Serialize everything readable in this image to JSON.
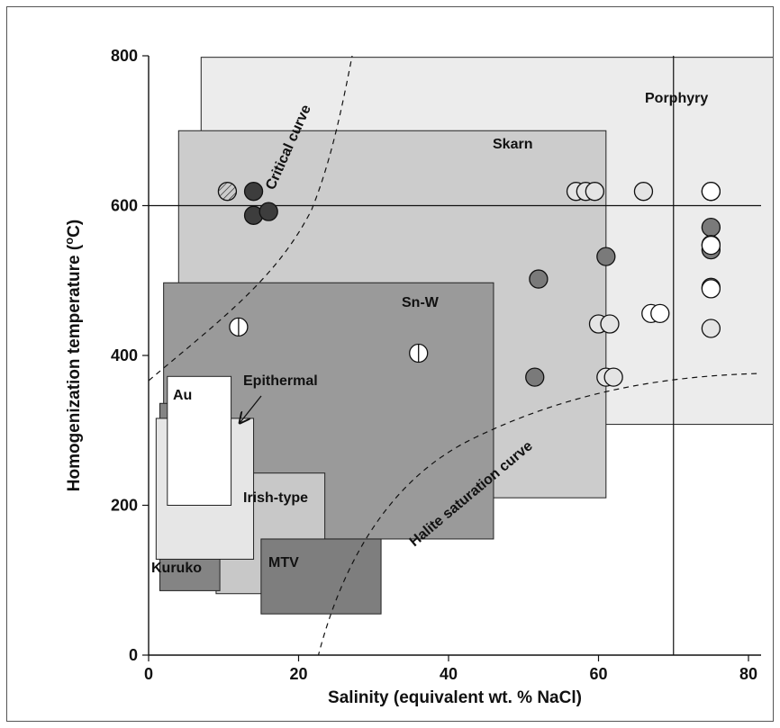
{
  "chart_data": {
    "type": "scatter",
    "xlabel": "Salinity (equivalent  wt. % NaCl)",
    "ylabel": "Homogenization temperature (",
    "ylabel_sup": "o",
    "ylabel_tail": "C)",
    "xlim": [
      0,
      80
    ],
    "ylim": [
      0,
      800
    ],
    "x_ticks": [
      0,
      20,
      40,
      60,
      80
    ],
    "y_ticks": [
      0,
      200,
      400,
      600,
      800
    ],
    "x_tick_labels": [
      "0",
      "20",
      "40",
      "60",
      "80"
    ],
    "y_tick_labels": [
      "0",
      "200",
      "400",
      "600",
      "800"
    ],
    "grid": false,
    "reference_lines": [
      {
        "orientation": "horizontal",
        "y": 600
      },
      {
        "orientation": "vertical",
        "x": 70
      }
    ],
    "regions": [
      {
        "name": "Porphyry",
        "x": [
          7,
          87.5
        ],
        "y": [
          308,
          798
        ],
        "fill": "#ececec"
      },
      {
        "name": "Skarn",
        "x": [
          4,
          61
        ],
        "y": [
          210,
          700
        ],
        "fill": "#cccccc"
      },
      {
        "name": "Sn-W",
        "x": [
          2,
          46
        ],
        "y": [
          155,
          497
        ],
        "fill": "#9a9a9a"
      },
      {
        "name": "Irish-type",
        "x": [
          9,
          23.5
        ],
        "y": [
          82,
          243
        ],
        "fill": "#c8c8c8"
      },
      {
        "name": "Kuruko",
        "x": [
          1.5,
          9.5
        ],
        "y": [
          86,
          336
        ],
        "fill": "#848484"
      },
      {
        "name": "Epithermal",
        "x": [
          1,
          14
        ],
        "y": [
          128,
          316
        ],
        "fill": "#e6e6e6"
      },
      {
        "name": "Au",
        "x": [
          2.5,
          11
        ],
        "y": [
          200,
          372
        ],
        "fill": "#ffffff"
      },
      {
        "name": "MTV",
        "x": [
          15,
          31
        ],
        "y": [
          55,
          155
        ],
        "fill": "#7e7e7e"
      }
    ],
    "region_labels": {
      "Porphyry": "Porphyry",
      "Skarn": "Skarn",
      "Sn-W": "Sn-W",
      "Epithermal": "Epithermal",
      "Au": "Au",
      "Irish-type": "Irish-type",
      "Kuruko": "Kuruko",
      "MTV": "MTV"
    },
    "curves": [
      {
        "name": "Critical curve",
        "label": "Critical curve"
      },
      {
        "name": "Halite saturation curve",
        "label": "Halite saturation curve"
      }
    ],
    "series": [
      {
        "style": "hatched",
        "fill": "#ffffff",
        "points": [
          [
            10.5,
            619
          ]
        ]
      },
      {
        "style": "vertical-bar",
        "fill": "#ffffff",
        "points": [
          [
            12,
            438
          ],
          [
            36,
            403
          ]
        ]
      },
      {
        "style": "dark",
        "fill": "#3d3d3d",
        "points": [
          [
            14,
            619
          ],
          [
            14,
            587
          ],
          [
            16,
            592
          ]
        ]
      },
      {
        "style": "medium",
        "fill": "#7a7a7a",
        "points": [
          [
            52,
            502
          ],
          [
            51.5,
            371
          ],
          [
            61,
            532
          ],
          [
            75,
            619
          ],
          [
            75,
            571
          ],
          [
            75,
            548
          ],
          [
            75,
            541
          ],
          [
            75,
            491
          ]
        ]
      },
      {
        "style": "light",
        "fill": "#e4e4e4",
        "points": [
          [
            57,
            619
          ],
          [
            58.3,
            619
          ],
          [
            59.5,
            619
          ],
          [
            66,
            619
          ],
          [
            60,
            442
          ],
          [
            61.5,
            442
          ],
          [
            61,
            371
          ],
          [
            62,
            371
          ],
          [
            75,
            436
          ]
        ]
      },
      {
        "style": "open",
        "fill": "#ffffff",
        "points": [
          [
            75,
            619
          ],
          [
            75,
            547
          ],
          [
            75,
            489
          ],
          [
            67,
            456
          ],
          [
            68.2,
            456
          ]
        ]
      }
    ]
  }
}
